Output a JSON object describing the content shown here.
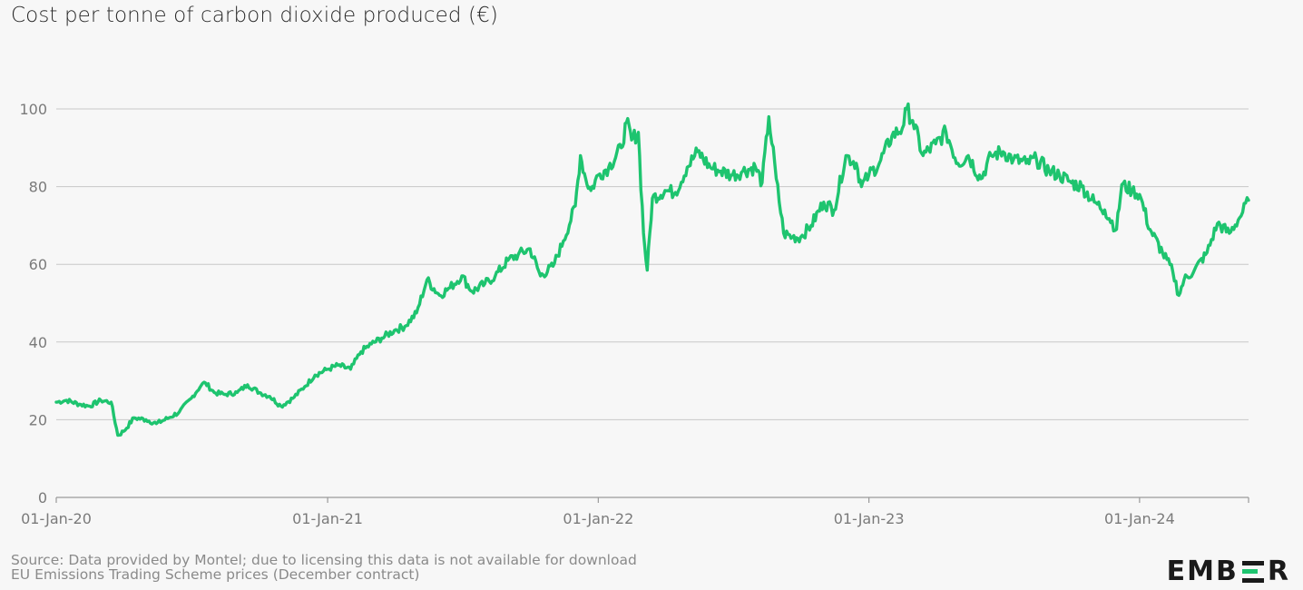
{
  "title": "Cost per tonne of carbon dioxide produced (€)",
  "footer": {
    "source": "Source: Data provided by Montel; due to licensing this data is not available for download",
    "subtitle": "EU Emissions Trading Scheme prices (December contract)"
  },
  "logo": {
    "text_left": "EMB",
    "text_right": "R",
    "bar_colors": [
      "#1a1a1a",
      "#1ec46f",
      "#1a1a1a"
    ]
  },
  "colors": {
    "series": "#1ec46f",
    "background": "#f7f7f7"
  },
  "chart_data": {
    "type": "line",
    "title": "Cost per tonne of carbon dioxide produced (€)",
    "xlabel": "",
    "ylabel": "",
    "ylim": [
      0,
      100
    ],
    "yticks": [
      0,
      20,
      40,
      60,
      80,
      100
    ],
    "xticks": [
      "01-Jan-20",
      "01-Jan-21",
      "01-Jan-22",
      "01-Jan-23",
      "01-Jan-24"
    ],
    "xlim": [
      "2020-01-01",
      "2024-05-27"
    ],
    "grid": true,
    "legend": "none",
    "series": [
      {
        "points": [
          [
            "2020-01-01",
            24.5
          ],
          [
            "2020-01-15",
            25.0
          ],
          [
            "2020-02-01",
            24.0
          ],
          [
            "2020-02-15",
            23.5
          ],
          [
            "2020-03-01",
            25.0
          ],
          [
            "2020-03-15",
            24.5
          ],
          [
            "2020-03-24",
            16.0
          ],
          [
            "2020-04-01",
            17.0
          ],
          [
            "2020-04-15",
            20.5
          ],
          [
            "2020-05-01",
            20.0
          ],
          [
            "2020-05-15",
            19.0
          ],
          [
            "2020-06-01",
            20.5
          ],
          [
            "2020-06-15",
            22.0
          ],
          [
            "2020-07-01",
            25.5
          ],
          [
            "2020-07-15",
            29.0
          ],
          [
            "2020-07-20",
            29.5
          ],
          [
            "2020-08-01",
            27.0
          ],
          [
            "2020-08-15",
            26.5
          ],
          [
            "2020-09-01",
            27.0
          ],
          [
            "2020-09-15",
            29.0
          ],
          [
            "2020-10-01",
            27.0
          ],
          [
            "2020-10-15",
            26.0
          ],
          [
            "2020-10-30",
            23.5
          ],
          [
            "2020-11-15",
            25.5
          ],
          [
            "2020-12-01",
            28.5
          ],
          [
            "2020-12-15",
            31.5
          ],
          [
            "2021-01-01",
            33.0
          ],
          [
            "2021-01-15",
            34.0
          ],
          [
            "2021-02-01",
            33.0
          ],
          [
            "2021-02-15",
            37.5
          ],
          [
            "2021-03-01",
            39.5
          ],
          [
            "2021-03-15",
            41.0
          ],
          [
            "2021-04-01",
            43.0
          ],
          [
            "2021-04-15",
            44.0
          ],
          [
            "2021-05-01",
            47.5
          ],
          [
            "2021-05-15",
            56.0
          ],
          [
            "2021-06-01",
            52.0
          ],
          [
            "2021-06-15",
            54.0
          ],
          [
            "2021-07-01",
            57.0
          ],
          [
            "2021-07-15",
            53.0
          ],
          [
            "2021-08-01",
            55.0
          ],
          [
            "2021-08-15",
            57.0
          ],
          [
            "2021-09-01",
            61.0
          ],
          [
            "2021-09-15",
            62.5
          ],
          [
            "2021-10-01",
            64.0
          ],
          [
            "2021-10-15",
            57.0
          ],
          [
            "2021-11-01",
            59.5
          ],
          [
            "2021-11-15",
            66.0
          ],
          [
            "2021-12-01",
            75.0
          ],
          [
            "2021-12-08",
            88.0
          ],
          [
            "2021-12-15",
            82.0
          ],
          [
            "2021-12-22",
            79.0
          ],
          [
            "2022-01-01",
            83.0
          ],
          [
            "2022-01-15",
            85.0
          ],
          [
            "2022-02-01",
            90.0
          ],
          [
            "2022-02-08",
            96.5
          ],
          [
            "2022-02-15",
            92.0
          ],
          [
            "2022-02-24",
            94.0
          ],
          [
            "2022-03-03",
            68.0
          ],
          [
            "2022-03-08",
            58.5
          ],
          [
            "2022-03-15",
            77.0
          ],
          [
            "2022-04-01",
            79.0
          ],
          [
            "2022-04-15",
            78.5
          ],
          [
            "2022-05-01",
            85.0
          ],
          [
            "2022-05-15",
            89.0
          ],
          [
            "2022-06-01",
            85.0
          ],
          [
            "2022-06-15",
            84.0
          ],
          [
            "2022-07-01",
            83.0
          ],
          [
            "2022-07-15",
            84.0
          ],
          [
            "2022-08-01",
            85.0
          ],
          [
            "2022-08-10",
            81.0
          ],
          [
            "2022-08-19",
            98.0
          ],
          [
            "2022-08-29",
            82.0
          ],
          [
            "2022-09-08",
            68.0
          ],
          [
            "2022-09-20",
            67.0
          ],
          [
            "2022-10-01",
            67.0
          ],
          [
            "2022-10-15",
            70.0
          ],
          [
            "2022-11-01",
            76.0
          ],
          [
            "2022-11-15",
            74.0
          ],
          [
            "2022-12-01",
            88.0
          ],
          [
            "2022-12-15",
            86.0
          ],
          [
            "2022-12-22",
            80.0
          ],
          [
            "2023-01-01",
            83.0
          ],
          [
            "2023-01-15",
            86.0
          ],
          [
            "2023-02-01",
            93.0
          ],
          [
            "2023-02-15",
            95.0
          ],
          [
            "2023-02-21",
            100.0
          ],
          [
            "2023-03-01",
            97.0
          ],
          [
            "2023-03-15",
            88.0
          ],
          [
            "2023-04-01",
            91.0
          ],
          [
            "2023-04-15",
            94.0
          ],
          [
            "2023-05-01",
            86.0
          ],
          [
            "2023-05-15",
            88.0
          ],
          [
            "2023-06-01",
            82.0
          ],
          [
            "2023-06-15",
            88.0
          ],
          [
            "2023-07-01",
            89.0
          ],
          [
            "2023-07-15",
            87.0
          ],
          [
            "2023-08-01",
            86.0
          ],
          [
            "2023-08-15",
            87.0
          ],
          [
            "2023-09-01",
            84.0
          ],
          [
            "2023-09-15",
            83.0
          ],
          [
            "2023-10-01",
            81.0
          ],
          [
            "2023-10-15",
            80.0
          ],
          [
            "2023-11-01",
            76.0
          ],
          [
            "2023-11-15",
            74.0
          ],
          [
            "2023-12-01",
            69.0
          ],
          [
            "2023-12-08",
            80.5
          ],
          [
            "2023-12-22",
            79.0
          ],
          [
            "2024-01-01",
            78.0
          ],
          [
            "2024-01-15",
            69.0
          ],
          [
            "2024-02-01",
            63.0
          ],
          [
            "2024-02-15",
            58.0
          ],
          [
            "2024-02-23",
            52.0
          ],
          [
            "2024-03-01",
            56.0
          ],
          [
            "2024-03-15",
            58.5
          ],
          [
            "2024-04-01",
            63.0
          ],
          [
            "2024-04-15",
            70.5
          ],
          [
            "2024-05-01",
            68.0
          ],
          [
            "2024-05-15",
            72.0
          ],
          [
            "2024-05-27",
            76.5
          ]
        ]
      }
    ]
  }
}
